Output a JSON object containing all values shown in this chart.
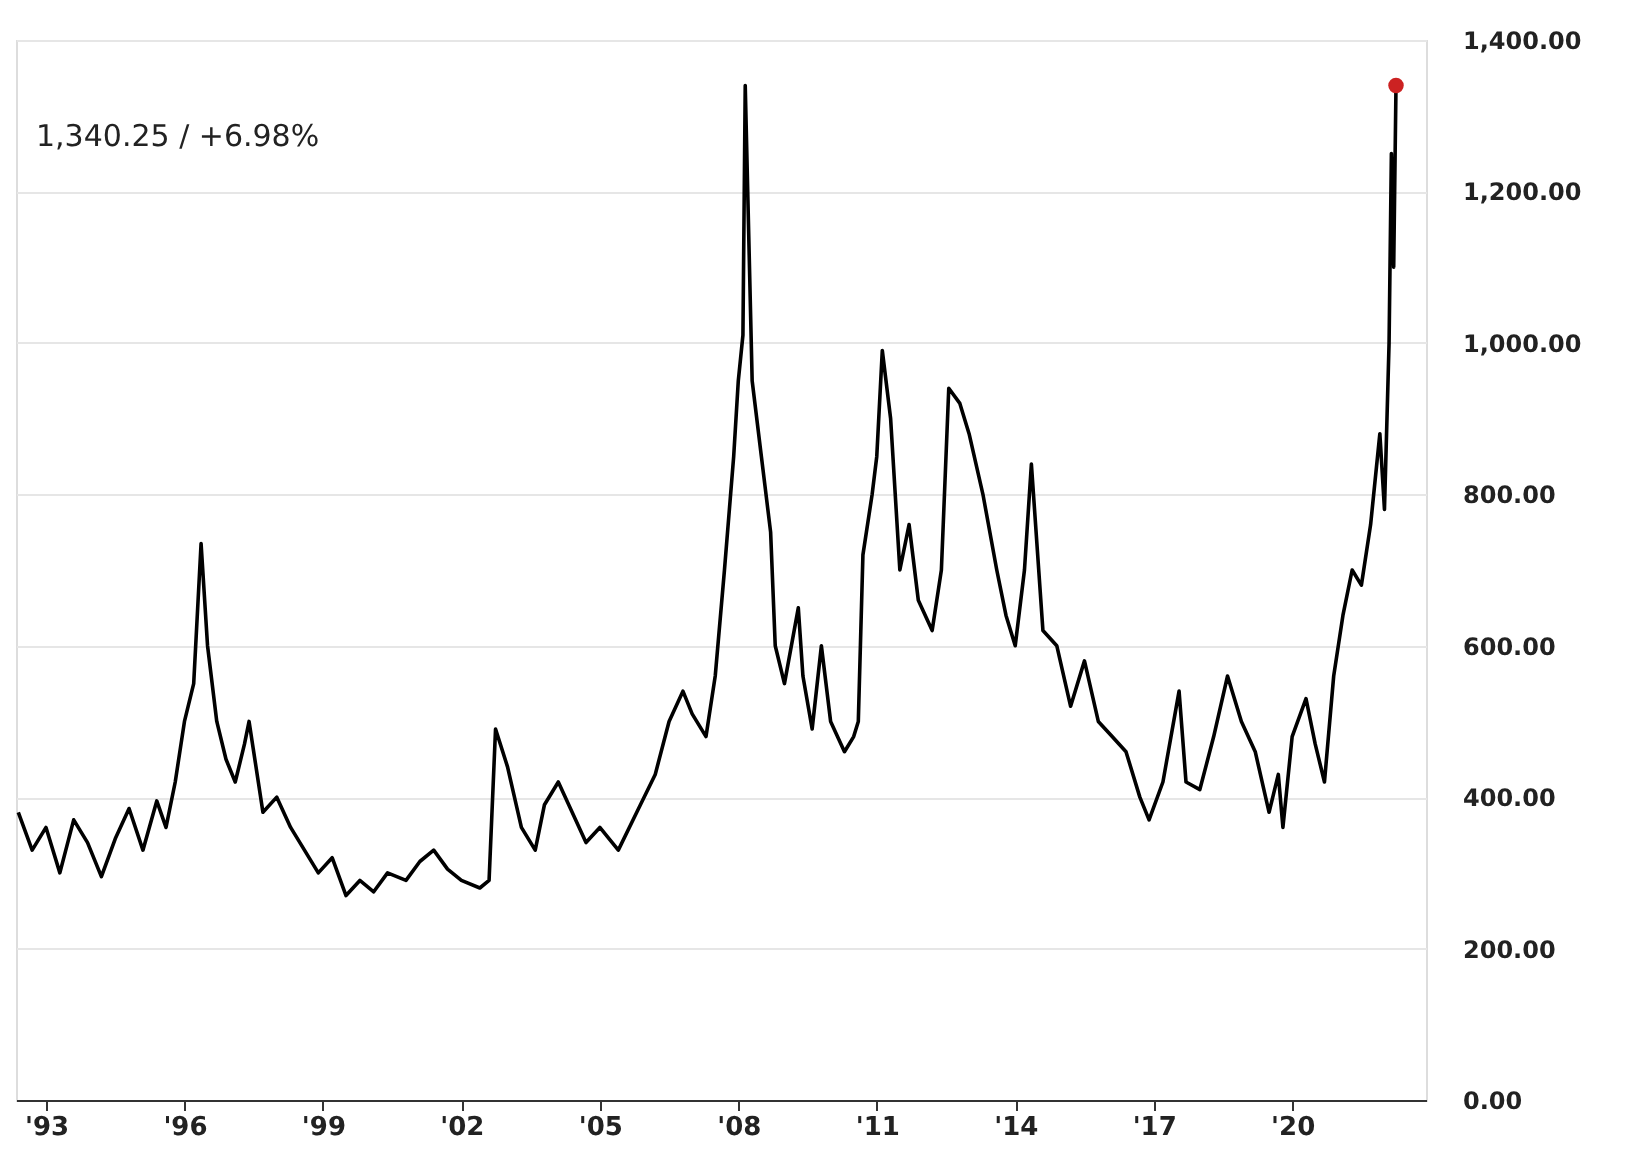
{
  "chart_data": {
    "type": "line",
    "annotations": [
      "1,340.25 / +6.98%"
    ],
    "xlim": [
      1992.35,
      2022.9
    ],
    "xticks": [
      {
        "value": 1993,
        "label": "'93"
      },
      {
        "value": 1996,
        "label": "'96"
      },
      {
        "value": 1999,
        "label": "'99"
      },
      {
        "value": 2002,
        "label": "'02"
      },
      {
        "value": 2005,
        "label": "'05"
      },
      {
        "value": 2008,
        "label": "'08"
      },
      {
        "value": 2011,
        "label": "'11"
      },
      {
        "value": 2014,
        "label": "'14"
      },
      {
        "value": 2017,
        "label": "'17"
      },
      {
        "value": 2020,
        "label": "'20"
      }
    ],
    "ylim": [
      0,
      1400
    ],
    "yticks": [
      {
        "value": 0,
        "label": "0.00"
      },
      {
        "value": 200,
        "label": "200.00"
      },
      {
        "value": 400,
        "label": "400.00"
      },
      {
        "value": 600,
        "label": "600.00"
      },
      {
        "value": 800,
        "label": "800.00"
      },
      {
        "value": 1000,
        "label": "1,000.00"
      },
      {
        "value": 1200,
        "label": "1,200.00"
      },
      {
        "value": 1400,
        "label": "1,400.00"
      }
    ],
    "grid": "y",
    "line_style": "solid",
    "series": [
      {
        "color": "#000000",
        "marker": "none",
        "x": [
          1992.4,
          1992.7,
          1993.0,
          1993.3,
          1993.6,
          1993.9,
          1994.2,
          1994.5,
          1994.8,
          1995.1,
          1995.4,
          1995.6,
          1995.8,
          1996.0,
          1996.2,
          1996.36,
          1996.5,
          1996.7,
          1996.9,
          1997.1,
          1997.3,
          1997.4,
          1997.7,
          1998.0,
          1998.3,
          1998.6,
          1998.9,
          1999.2,
          1999.5,
          1999.8,
          2000.1,
          2000.4,
          2000.8,
          2001.1,
          2001.4,
          2001.7,
          2002.0,
          2002.4,
          2002.6,
          2002.74,
          2003.0,
          2003.3,
          2003.6,
          2003.8,
          2004.1,
          2004.4,
          2004.7,
          2005.0,
          2005.4,
          2005.8,
          2006.2,
          2006.5,
          2006.8,
          2007.0,
          2007.3,
          2007.5,
          2007.7,
          2007.9,
          2008.0,
          2008.1,
          2008.15,
          2008.3,
          2008.5,
          2008.7,
          2008.8,
          2009.0,
          2009.3,
          2009.4,
          2009.6,
          2009.8,
          2010.0,
          2010.3,
          2010.5,
          2010.6,
          2010.7,
          2010.9,
          2011.0,
          2011.12,
          2011.3,
          2011.5,
          2011.7,
          2011.9,
          2012.2,
          2012.4,
          2012.56,
          2012.8,
          2013.0,
          2013.3,
          2013.6,
          2013.8,
          2014.0,
          2014.2,
          2014.35,
          2014.6,
          2014.9,
          2015.2,
          2015.5,
          2015.8,
          2016.1,
          2016.4,
          2016.7,
          2016.9,
          2017.2,
          2017.55,
          2017.7,
          2018.0,
          2018.3,
          2018.6,
          2018.9,
          2019.2,
          2019.5,
          2019.7,
          2019.8,
          2020.0,
          2020.3,
          2020.5,
          2020.7,
          2020.9,
          2021.1,
          2021.3,
          2021.5,
          2021.7,
          2021.9,
          2022.0,
          2022.1,
          2022.15,
          2022.2,
          2022.25
        ],
        "values": [
          380,
          330,
          360,
          300,
          370,
          340,
          295,
          345,
          385,
          330,
          395,
          360,
          420,
          500,
          550,
          735,
          600,
          500,
          450,
          420,
          470,
          500,
          380,
          400,
          360,
          330,
          300,
          320,
          270,
          290,
          275,
          300,
          290,
          315,
          330,
          305,
          290,
          280,
          290,
          490,
          440,
          360,
          330,
          390,
          420,
          380,
          340,
          360,
          330,
          380,
          430,
          500,
          540,
          510,
          480,
          560,
          700,
          850,
          950,
          1010,
          1340,
          950,
          850,
          750,
          600,
          550,
          650,
          560,
          490,
          600,
          500,
          460,
          480,
          500,
          720,
          800,
          850,
          990,
          900,
          700,
          760,
          660,
          620,
          700,
          940,
          920,
          880,
          800,
          700,
          640,
          600,
          700,
          840,
          620,
          600,
          520,
          580,
          500,
          480,
          460,
          400,
          370,
          420,
          540,
          420,
          410,
          480,
          560,
          500,
          460,
          380,
          430,
          360,
          480,
          530,
          470,
          420,
          560,
          640,
          700,
          680,
          760,
          880,
          780,
          1000,
          1250,
          1100,
          1340
        ]
      },
      {
        "type": "scatter",
        "color": "#cc2222",
        "marker": "circle",
        "x": [
          2022.25
        ],
        "values": [
          1340
        ]
      }
    ]
  }
}
